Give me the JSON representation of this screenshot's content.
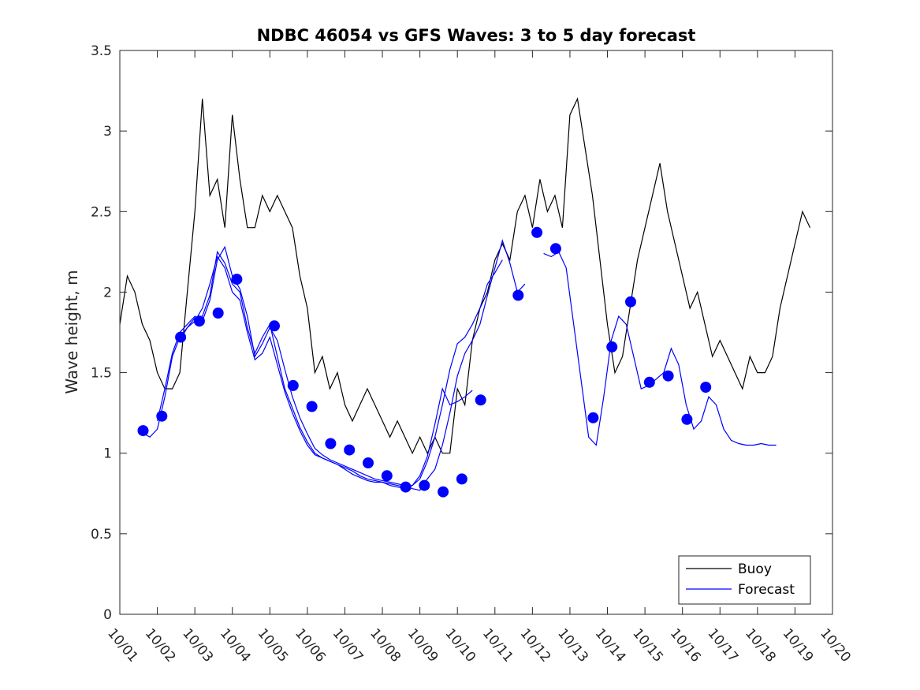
{
  "chart_data": {
    "type": "line",
    "title": "NDBC 46054 vs GFS Waves: 3 to 5 day forecast",
    "xlabel": "",
    "ylabel": "Wave height, m",
    "xlim": [
      0,
      19
    ],
    "ylim": [
      0,
      3.5
    ],
    "x_tick_labels": [
      "10/01",
      "10/02",
      "10/03",
      "10/04",
      "10/05",
      "10/06",
      "10/07",
      "10/08",
      "10/09",
      "10/10",
      "10/11",
      "10/12",
      "10/13",
      "10/14",
      "10/15",
      "10/16",
      "10/17",
      "10/18",
      "10/19",
      "10/20"
    ],
    "y_ticks": [
      0,
      0.5,
      1,
      1.5,
      2,
      2.5,
      3,
      3.5
    ],
    "y_tick_labels": [
      "0",
      "0.5",
      "1",
      "1.5",
      "2",
      "2.5",
      "3",
      "3.5"
    ],
    "legend": {
      "position": "bottom-right",
      "entries": [
        "Buoy",
        "Forecast"
      ]
    },
    "colors": {
      "buoy": "#000000",
      "forecast": "#0000ff"
    },
    "series": [
      {
        "name": "Buoy",
        "x": [
          0.0,
          0.2,
          0.4,
          0.6,
          0.8,
          1.0,
          1.2,
          1.4,
          1.6,
          1.8,
          2.0,
          2.2,
          2.4,
          2.6,
          2.8,
          3.0,
          3.2,
          3.4,
          3.6,
          3.8,
          4.0,
          4.2,
          4.4,
          4.6,
          4.8,
          5.0,
          5.2,
          5.4,
          5.6,
          5.8,
          6.0,
          6.2,
          6.4,
          6.6,
          6.8,
          7.0,
          7.2,
          7.4,
          7.6,
          7.8,
          8.0,
          8.2,
          8.4,
          8.6,
          8.8,
          9.0,
          9.2,
          9.4,
          9.6,
          9.8,
          10.0,
          10.2,
          10.4,
          10.6,
          10.8,
          11.0,
          11.2,
          11.4,
          11.6,
          11.8,
          12.0,
          12.2,
          12.4,
          12.6,
          12.8,
          13.0,
          13.2,
          13.4,
          13.6,
          13.8,
          14.0,
          14.2,
          14.4,
          14.6,
          14.8,
          15.0,
          15.2,
          15.4,
          15.6,
          15.8,
          16.0,
          16.2,
          16.4,
          16.6,
          16.8,
          17.0,
          17.2,
          17.4,
          17.6,
          17.8,
          18.0,
          18.2,
          18.4
        ],
        "values": [
          1.8,
          2.1,
          2.0,
          1.8,
          1.7,
          1.5,
          1.4,
          1.4,
          1.5,
          2.0,
          2.5,
          3.2,
          2.6,
          2.7,
          2.4,
          3.1,
          2.7,
          2.4,
          2.4,
          2.6,
          2.5,
          2.6,
          2.5,
          2.4,
          2.1,
          1.9,
          1.5,
          1.6,
          1.4,
          1.5,
          1.3,
          1.2,
          1.3,
          1.4,
          1.3,
          1.2,
          1.1,
          1.2,
          1.1,
          1.0,
          1.1,
          1.0,
          1.1,
          1.0,
          1.0,
          1.4,
          1.3,
          1.7,
          1.9,
          2.0,
          2.2,
          2.3,
          2.2,
          2.5,
          2.6,
          2.4,
          2.7,
          2.5,
          2.6,
          2.4,
          3.1,
          3.2,
          2.9,
          2.6,
          2.2,
          1.8,
          1.5,
          1.6,
          1.9,
          2.2,
          2.4,
          2.6,
          2.8,
          2.5,
          2.3,
          2.1,
          1.9,
          2.0,
          1.8,
          1.6,
          1.7,
          1.6,
          1.5,
          1.4,
          1.6,
          1.5,
          1.5,
          1.6,
          1.9,
          2.1,
          2.3,
          2.5,
          2.4
        ]
      },
      {
        "name": "Forecast",
        "markers": {
          "x": [
            0.62,
            1.12,
            1.62,
            2.12,
            2.62,
            3.12,
            4.12,
            4.62,
            5.12,
            5.62,
            6.12,
            6.62,
            7.12,
            7.62,
            8.12,
            8.62,
            9.12,
            9.62,
            10.62,
            11.12,
            11.62,
            12.62,
            13.12,
            13.62,
            14.12,
            14.62,
            15.12,
            15.62
          ],
          "values": [
            1.14,
            1.23,
            1.72,
            1.82,
            1.87,
            2.08,
            1.79,
            1.42,
            1.29,
            1.06,
            1.02,
            0.94,
            0.86,
            0.79,
            0.8,
            0.76,
            0.84,
            1.33,
            1.98,
            2.37,
            2.27,
            1.22,
            1.66,
            1.94,
            1.44,
            1.48,
            1.21,
            1.41
          ]
        },
        "runs": [
          {
            "x": [
              0.65,
              0.8,
              1.0,
              1.2,
              1.4,
              1.6,
              1.8,
              2.0,
              2.2,
              2.4,
              2.6,
              2.8,
              3.0,
              3.2,
              3.4,
              3.6,
              3.8,
              4.0,
              4.2,
              4.4,
              4.6,
              4.8,
              5.0,
              5.2,
              5.4,
              5.6,
              5.8,
              6.0,
              6.2,
              6.4,
              6.6,
              6.8,
              7.0,
              7.2,
              7.4,
              7.6,
              7.8,
              8.0,
              8.2,
              8.4,
              8.6,
              8.8,
              9.0,
              9.2,
              9.4,
              9.6,
              9.8,
              10.0,
              10.2
            ],
            "values": [
              1.12,
              1.1,
              1.15,
              1.35,
              1.6,
              1.72,
              1.78,
              1.82,
              1.9,
              2.05,
              2.22,
              2.15,
              2.0,
              1.95,
              1.75,
              1.58,
              1.62,
              1.72,
              1.55,
              1.38,
              1.25,
              1.14,
              1.05,
              0.99,
              0.97,
              0.95,
              0.93,
              0.9,
              0.87,
              0.85,
              0.83,
              0.82,
              0.82,
              0.81,
              0.8,
              0.79,
              0.8,
              0.84,
              0.95,
              1.1,
              1.3,
              1.52,
              1.68,
              1.72,
              1.8,
              1.9,
              2.05,
              2.12,
              2.2
            ]
          },
          {
            "x": [
              1.0,
              1.2,
              1.4,
              1.6,
              1.8,
              2.0,
              2.2,
              2.4,
              2.6,
              2.8,
              3.0,
              3.2,
              3.4,
              3.6,
              3.8,
              4.0,
              4.2,
              4.4,
              4.6,
              4.8,
              5.0,
              5.2,
              5.4,
              5.6,
              5.8,
              6.0,
              6.2,
              6.4,
              6.6,
              6.8,
              7.0,
              7.2,
              7.4,
              7.6,
              7.8,
              8.0,
              8.2,
              8.4,
              8.6,
              8.8,
              9.0,
              9.2,
              9.4,
              9.6,
              9.8,
              10.0,
              10.2,
              10.4,
              10.6,
              10.8
            ],
            "values": [
              1.2,
              1.4,
              1.62,
              1.75,
              1.8,
              1.85,
              1.82,
              1.95,
              2.2,
              2.28,
              2.1,
              2.02,
              1.85,
              1.6,
              1.68,
              1.78,
              1.7,
              1.52,
              1.35,
              1.22,
              1.12,
              1.03,
              0.99,
              0.96,
              0.94,
              0.92,
              0.9,
              0.88,
              0.86,
              0.84,
              0.83,
              0.82,
              0.81,
              0.8,
              0.78,
              0.77,
              0.84,
              0.9,
              1.05,
              1.25,
              1.48,
              1.62,
              1.7,
              1.8,
              1.98,
              2.15,
              2.32,
              2.18,
              2.0,
              2.05
            ]
          },
          {
            "x": [
              1.6,
              1.8,
              2.0,
              2.2,
              2.4,
              2.6,
              2.8,
              3.0,
              3.2,
              3.4,
              3.6,
              3.8,
              4.0,
              4.2,
              4.4,
              4.6,
              4.8,
              5.0,
              5.2,
              5.4,
              5.6,
              5.8,
              6.0,
              6.2,
              6.4,
              6.6,
              6.8,
              7.0,
              7.2,
              7.4,
              7.6,
              7.8,
              8.0,
              8.2,
              8.4,
              8.6,
              8.8,
              9.0,
              9.2,
              9.4
            ],
            "values": [
              1.7,
              1.78,
              1.84,
              1.85,
              1.98,
              2.25,
              2.18,
              2.05,
              2.0,
              1.78,
              1.62,
              1.72,
              1.8,
              1.6,
              1.4,
              1.28,
              1.16,
              1.07,
              1.0,
              0.97,
              0.95,
              0.93,
              0.91,
              0.89,
              0.86,
              0.84,
              0.83,
              0.82,
              0.8,
              0.79,
              0.78,
              0.8,
              0.86,
              0.98,
              1.18,
              1.4,
              1.3,
              1.32,
              1.35,
              1.39
            ]
          },
          {
            "x": [
              11.3,
              11.5,
              11.7,
              11.9,
              12.1,
              12.3,
              12.5,
              12.7,
              12.9,
              13.1,
              13.3,
              13.5,
              13.7,
              13.9,
              14.1,
              14.3,
              14.5,
              14.7,
              14.9,
              15.1,
              15.3,
              15.5,
              15.7,
              15.9,
              16.1,
              16.3,
              16.5,
              16.7,
              16.9,
              17.1,
              17.3,
              17.5
            ],
            "values": [
              2.24,
              2.22,
              2.25,
              2.15,
              1.8,
              1.45,
              1.1,
              1.05,
              1.35,
              1.7,
              1.85,
              1.8,
              1.6,
              1.4,
              1.42,
              1.46,
              1.5,
              1.65,
              1.55,
              1.3,
              1.15,
              1.2,
              1.35,
              1.3,
              1.15,
              1.08,
              1.06,
              1.05,
              1.05,
              1.06,
              1.05,
              1.05
            ]
          }
        ]
      }
    ]
  }
}
